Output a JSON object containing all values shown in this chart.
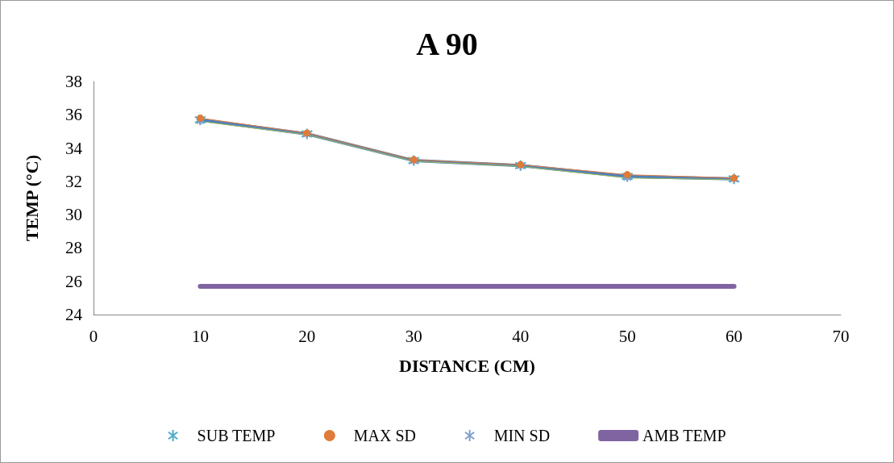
{
  "chart_data": {
    "type": "line",
    "title": "A 90",
    "xlabel": "DISTANCE (CM)",
    "ylabel": "TEMP (°C)",
    "x": [
      10,
      20,
      30,
      40,
      50,
      60
    ],
    "xlim": [
      0,
      70
    ],
    "xticks": [
      0,
      10,
      20,
      30,
      40,
      50,
      60,
      70
    ],
    "ylim": [
      24,
      38
    ],
    "yticks": [
      24,
      26,
      28,
      30,
      32,
      34,
      36,
      38
    ],
    "grid": false,
    "legend": "bottom",
    "series": [
      {
        "name": "SUB TEMP",
        "color": "#4f81bd",
        "marker": "cross",
        "values": [
          35.7,
          34.85,
          33.25,
          32.95,
          32.3,
          32.15
        ]
      },
      {
        "name": "MAX SD",
        "color": "#e07b39",
        "marker": "circle",
        "values": [
          35.8,
          34.9,
          33.3,
          33.0,
          32.4,
          32.2
        ]
      },
      {
        "name": "MIN SD",
        "color": "#9bbb59",
        "marker": "cross",
        "values": [
          35.6,
          34.8,
          33.2,
          32.9,
          32.2,
          32.1
        ]
      },
      {
        "name": "AMB TEMP",
        "color": "#8064a2",
        "marker": "none",
        "values": [
          25.7,
          25.7,
          25.7,
          25.7,
          25.7,
          25.7
        ]
      }
    ]
  }
}
